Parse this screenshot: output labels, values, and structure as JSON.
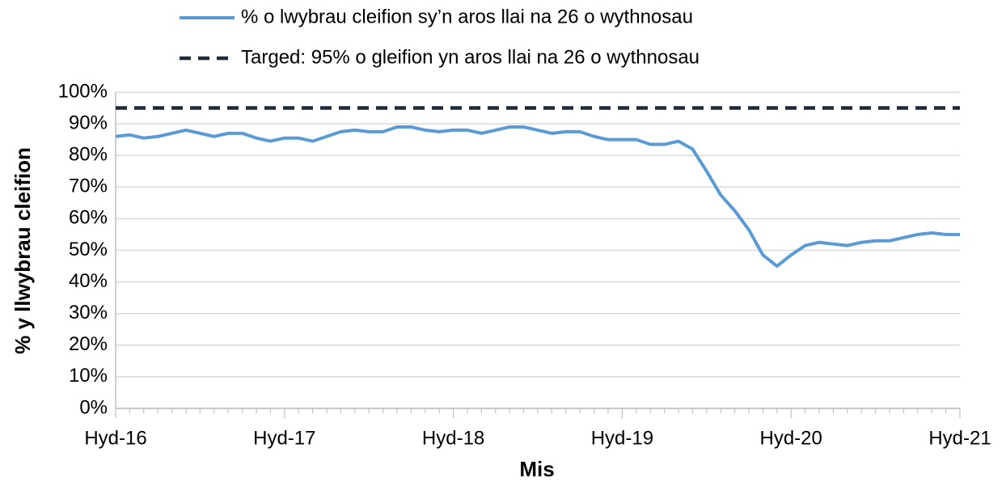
{
  "chart_data": {
    "type": "line",
    "x_label": "Mis",
    "y_label": "% y llwybrau cleifion",
    "categories": [
      "Hyd-16",
      null,
      null,
      null,
      null,
      null,
      null,
      null,
      null,
      null,
      null,
      null,
      "Hyd-17",
      null,
      null,
      null,
      null,
      null,
      null,
      null,
      null,
      null,
      null,
      null,
      "Hyd-18",
      null,
      null,
      null,
      null,
      null,
      null,
      null,
      null,
      null,
      null,
      null,
      "Hyd-19",
      null,
      null,
      null,
      null,
      null,
      null,
      null,
      null,
      null,
      null,
      null,
      "Hyd-20",
      null,
      null,
      null,
      null,
      null,
      null,
      null,
      null,
      null,
      null,
      null,
      "Hyd-21"
    ],
    "series": [
      {
        "name": "% o lwybrau cleifion sy’n aros llai na 26 o wythnosau",
        "color": "#5b9bd5",
        "dash": false,
        "values": [
          86,
          86.5,
          85.5,
          86,
          87,
          88,
          87,
          86,
          87,
          87,
          85.5,
          84.5,
          85.5,
          85.5,
          84.5,
          86,
          87.5,
          88,
          87.5,
          87.5,
          89,
          89,
          88,
          87.5,
          88,
          88,
          87,
          88,
          89,
          89,
          88,
          87,
          87.5,
          87.5,
          86,
          85,
          85,
          85,
          83.5,
          83.5,
          84.5,
          82,
          75,
          67.5,
          62.5,
          56.5,
          48.5,
          45,
          48.5,
          51.5,
          52.5,
          52,
          51.5,
          52.5,
          53,
          53,
          54,
          55,
          55.5,
          55,
          55
        ]
      },
      {
        "name": "Targed: 95% o gleifion yn aros llai na 26 o wythnosau",
        "color": "#1f2a38",
        "dash": true,
        "values": [
          95,
          95,
          95,
          95,
          95,
          95,
          95,
          95,
          95,
          95,
          95,
          95,
          95,
          95,
          95,
          95,
          95,
          95,
          95,
          95,
          95,
          95,
          95,
          95,
          95,
          95,
          95,
          95,
          95,
          95,
          95,
          95,
          95,
          95,
          95,
          95,
          95,
          95,
          95,
          95,
          95,
          95,
          95,
          95,
          95,
          95,
          95,
          95,
          95,
          95,
          95,
          95,
          95,
          95,
          95,
          95,
          95,
          95,
          95,
          95,
          95
        ]
      }
    ],
    "ylim": [
      0,
      100
    ],
    "yticks": [
      {
        "value": 0,
        "label": "0%"
      },
      {
        "value": 10,
        "label": "10%"
      },
      {
        "value": 20,
        "label": "20%"
      },
      {
        "value": 30,
        "label": "30%"
      },
      {
        "value": 40,
        "label": "40%"
      },
      {
        "value": 50,
        "label": "50%"
      },
      {
        "value": 60,
        "label": "60%"
      },
      {
        "value": 70,
        "label": "70%"
      },
      {
        "value": 80,
        "label": "80%"
      },
      {
        "value": 90,
        "label": "90%"
      },
      {
        "value": 100,
        "label": "100%"
      }
    ],
    "grid": true
  }
}
